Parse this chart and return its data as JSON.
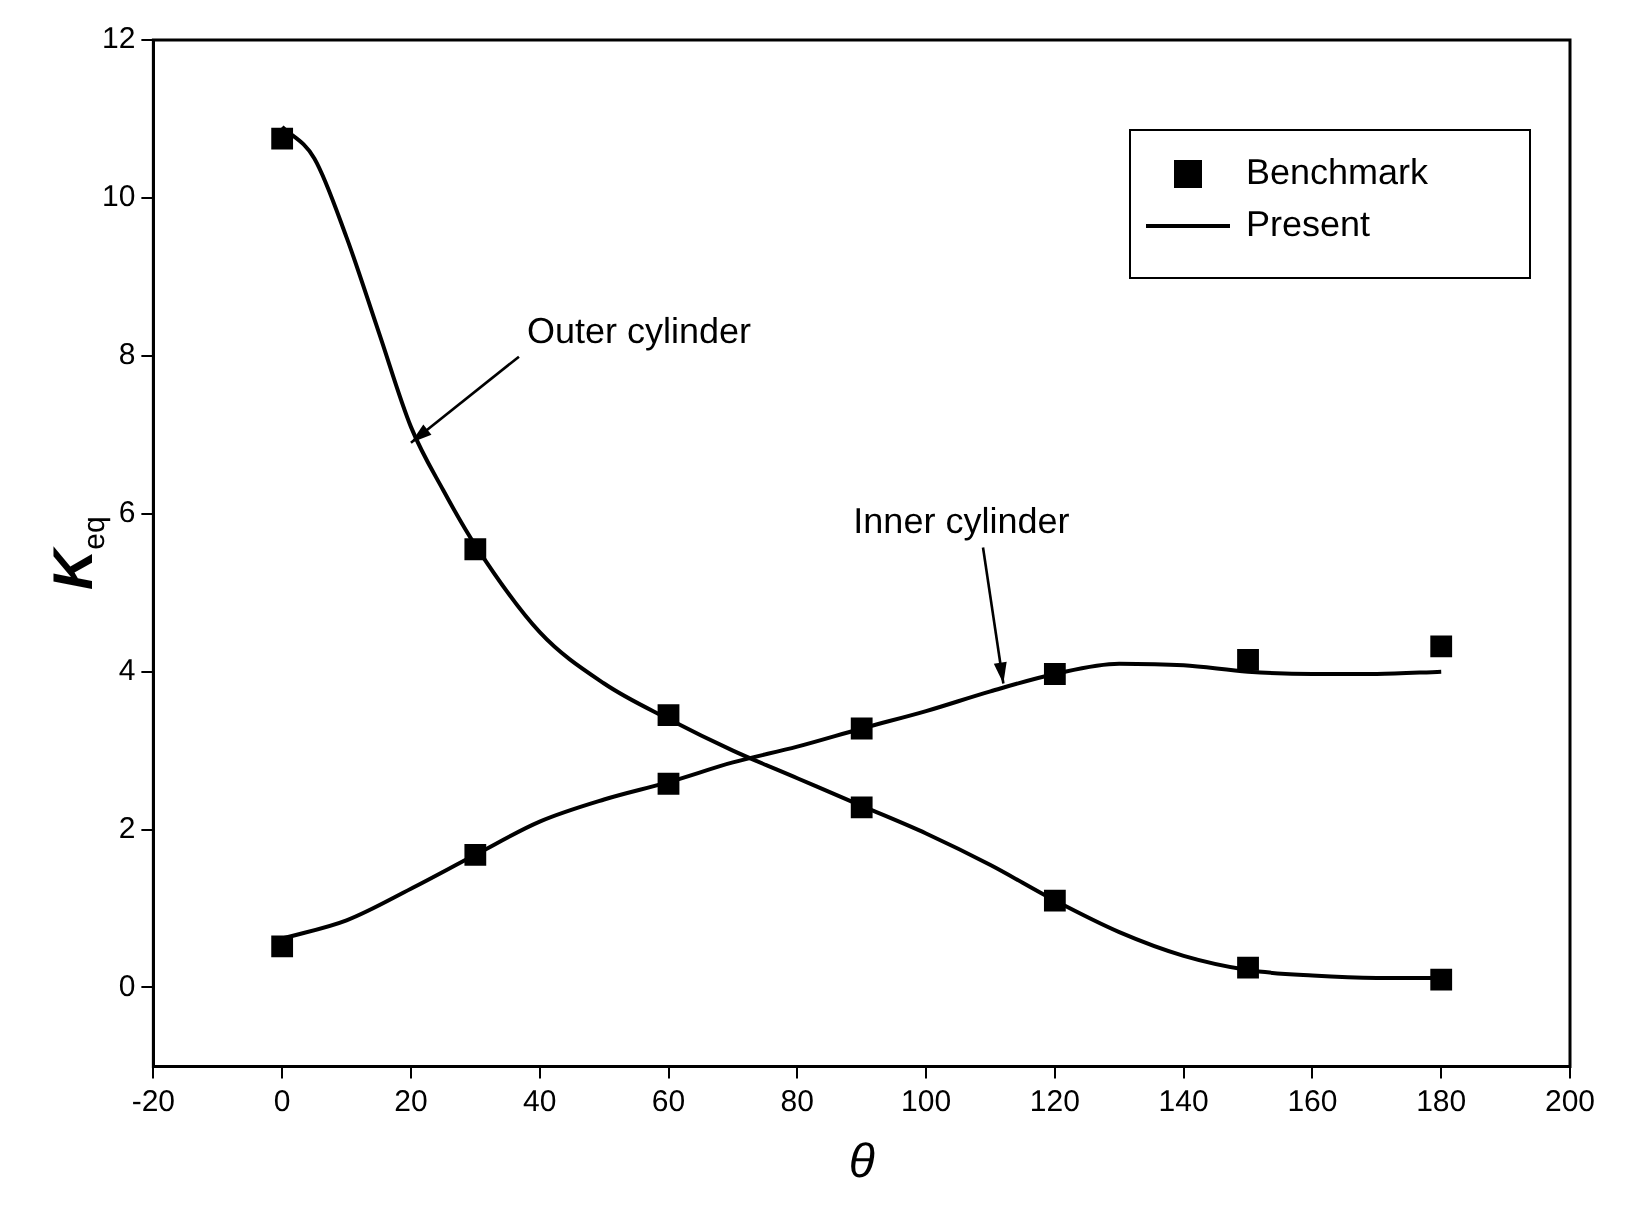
{
  "chart_data": {
    "type": "scatter",
    "xlabel": "θ",
    "ylabel": "K$_{eq}$",
    "xlim": [
      -20,
      200
    ],
    "xticks": [
      -20,
      0,
      20,
      40,
      60,
      80,
      100,
      120,
      140,
      160,
      180,
      200
    ],
    "ylim": [
      -1,
      12
    ],
    "yticks": [
      0,
      2,
      4,
      6,
      8,
      10,
      12
    ],
    "grid": false,
    "legend": "top right",
    "series": [
      {
        "name": "Benchmark",
        "marker": "square",
        "color": "#000000",
        "x": [
          0,
          30,
          60,
          90,
          120,
          150,
          180
        ],
        "values": [
          10.75,
          5.55,
          3.45,
          2.28,
          1.1,
          0.25,
          0.1
        ]
      },
      {
        "marker": "square",
        "color": "#000000",
        "x": [
          0,
          30,
          60,
          90,
          120,
          150,
          180
        ],
        "values": [
          0.52,
          1.68,
          2.58,
          3.28,
          3.97,
          4.15,
          4.32
        ]
      },
      {
        "name": "Present",
        "type": "line",
        "marker": "none",
        "line_style": "solid",
        "color": "#000000",
        "x": [
          0,
          5,
          10,
          15,
          20,
          25,
          30,
          40,
          50,
          60,
          70,
          80,
          90,
          100,
          110,
          120,
          130,
          140,
          150,
          160,
          170,
          180
        ],
        "values": [
          10.9,
          10.5,
          9.5,
          8.3,
          7.1,
          6.3,
          5.6,
          4.5,
          3.85,
          3.4,
          3.0,
          2.65,
          2.3,
          1.95,
          1.55,
          1.1,
          0.7,
          0.4,
          0.22,
          0.15,
          0.12,
          0.12
        ]
      },
      {
        "type": "line",
        "marker": "none",
        "line_style": "solid",
        "color": "#000000",
        "x": [
          0,
          10,
          20,
          30,
          40,
          50,
          60,
          70,
          80,
          90,
          100,
          110,
          120,
          130,
          140,
          150,
          160,
          170,
          180
        ],
        "values": [
          0.62,
          0.85,
          1.25,
          1.68,
          2.1,
          2.38,
          2.6,
          2.85,
          3.05,
          3.28,
          3.5,
          3.75,
          3.97,
          4.1,
          4.08,
          4.0,
          3.97,
          3.97,
          4.0
        ]
      }
    ],
    "annotations": [
      {
        "text": "Outer cylinder",
        "x": 20,
        "y": 6.9
      },
      {
        "text": "Inner cylinder",
        "x": 112,
        "y": 3.85
      }
    ]
  }
}
